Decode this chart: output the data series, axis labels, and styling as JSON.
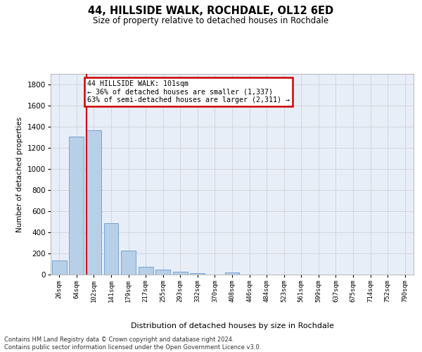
{
  "title_line1": "44, HILLSIDE WALK, ROCHDALE, OL12 6ED",
  "title_line2": "Size of property relative to detached houses in Rochdale",
  "xlabel": "Distribution of detached houses by size in Rochdale",
  "ylabel": "Number of detached properties",
  "categories": [
    "26sqm",
    "64sqm",
    "102sqm",
    "141sqm",
    "179sqm",
    "217sqm",
    "255sqm",
    "293sqm",
    "332sqm",
    "370sqm",
    "408sqm",
    "446sqm",
    "484sqm",
    "523sqm",
    "561sqm",
    "599sqm",
    "637sqm",
    "675sqm",
    "714sqm",
    "752sqm",
    "790sqm"
  ],
  "values": [
    135,
    1310,
    1370,
    485,
    225,
    75,
    45,
    28,
    15,
    0,
    20,
    0,
    0,
    0,
    0,
    0,
    0,
    0,
    0,
    0,
    0
  ],
  "bar_color": "#b8cfe8",
  "bar_edge_color": "#6699cc",
  "vline_color": "#cc0000",
  "vline_bar_idx": 2,
  "annotation_text": "44 HILLSIDE WALK: 101sqm\n← 36% of detached houses are smaller (1,337)\n63% of semi-detached houses are larger (2,311) →",
  "annotation_box_facecolor": "#ffffff",
  "annotation_box_edgecolor": "#cc0000",
  "ylim_max": 1900,
  "yticks": [
    0,
    200,
    400,
    600,
    800,
    1000,
    1200,
    1400,
    1600,
    1800
  ],
  "footer": "Contains HM Land Registry data © Crown copyright and database right 2024.\nContains public sector information licensed under the Open Government Licence v3.0.",
  "bg_color": "#e8eef8",
  "grid_color": "#cccccc"
}
